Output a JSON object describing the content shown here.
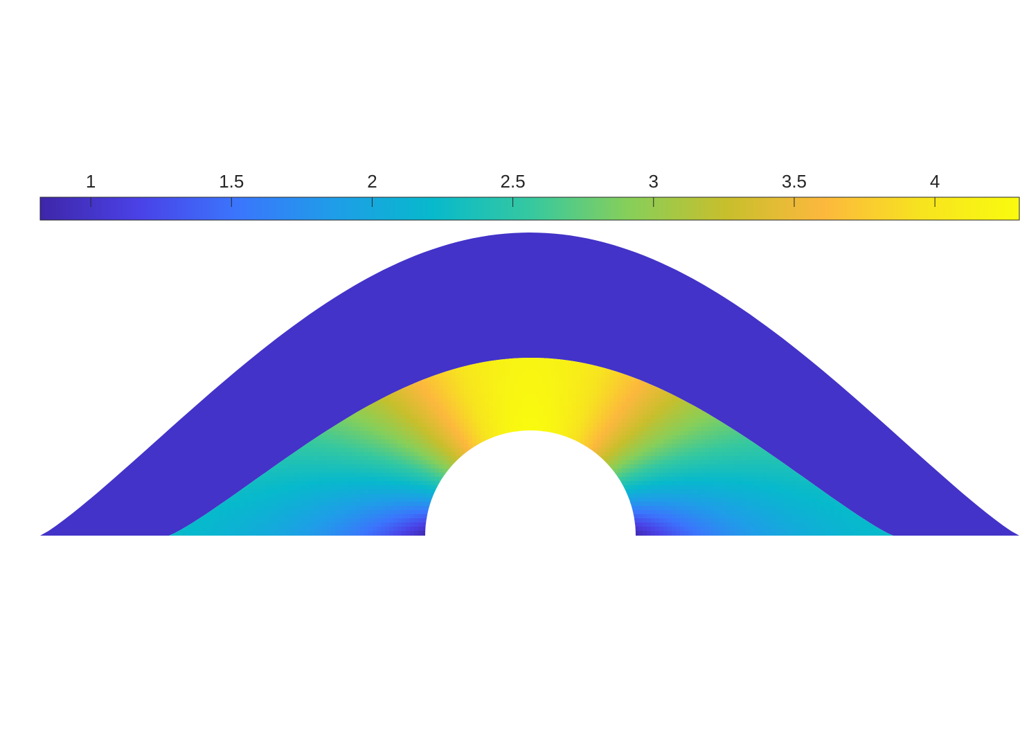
{
  "chart_data": {
    "type": "heatmap",
    "title": "",
    "xlabel": "",
    "ylabel": "",
    "colorbar": {
      "orientation": "horizontal",
      "location": "top",
      "colormap": "parula",
      "range": [
        0.82,
        4.3
      ],
      "ticks": [
        1,
        1.5,
        2,
        2.5,
        3,
        3.5,
        4
      ],
      "tick_labels": [
        "1",
        "1.5",
        "2",
        "2.5",
        "3",
        "3.5",
        "4"
      ]
    },
    "field": {
      "description_free": true,
      "outer_band_value": 0.85,
      "inner_region_crown_max": 4.3,
      "inner_region_base_min": 2.4,
      "hole_edge_min": 0.85,
      "grid": false,
      "axes_visible": false
    },
    "colors": {
      "outer_band": "#4333c8",
      "background": "#ffffff",
      "parula_stops": [
        "#3e26a8",
        "#4a41e6",
        "#3b75fd",
        "#1f9de8",
        "#07b9cc",
        "#35c8a0",
        "#86cf5a",
        "#c7bf2c",
        "#fcb83d",
        "#f7e31f",
        "#f9fb0e"
      ]
    }
  }
}
